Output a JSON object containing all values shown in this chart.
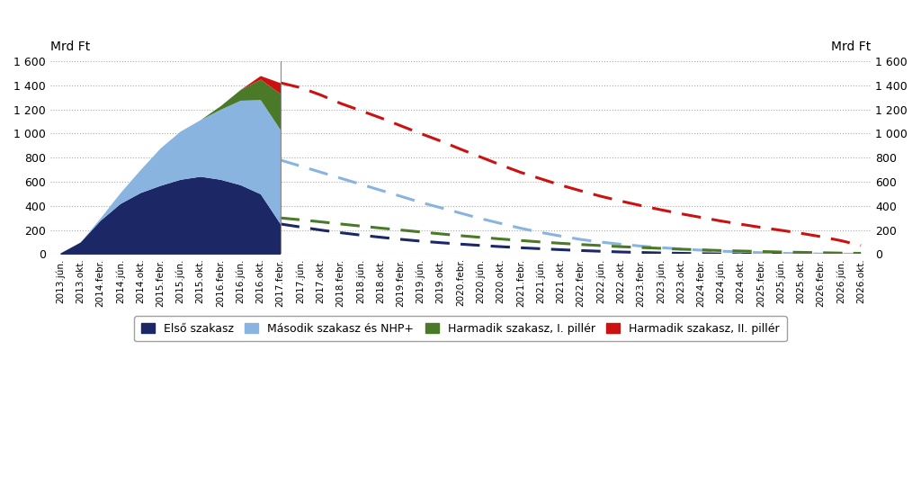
{
  "ylabel_left": "Mrd Ft",
  "ylabel_right": "Mrd Ft",
  "ylim": [
    0,
    1600
  ],
  "yticks": [
    0,
    200,
    400,
    600,
    800,
    1000,
    1200,
    1400,
    1600
  ],
  "colors": {
    "elso": "#1c2766",
    "masodik": "#8ab4e0",
    "harmadik1": "#4a7a28",
    "harmadik2": "#cc1111"
  },
  "legend_labels": [
    "Első szakasz",
    "Második szakasz és NHP+",
    "Harmadik szakasz, I. pillér",
    "Harmadik szakasz, II. pillér"
  ],
  "x_labels": [
    "2013.jún.",
    "2013.okt.",
    "2014.febr.",
    "2014.jún.",
    "2014.okt.",
    "2015.febr.",
    "2015.jún.",
    "2015.okt.",
    "2016.febr.",
    "2016.jún.",
    "2016.okt.",
    "2017.febr.",
    "2017.jún.",
    "2017.okt.",
    "2018.febr.",
    "2018.jún.",
    "2018.okt.",
    "2019.febr.",
    "2019.jún.",
    "2019.okt.",
    "2020.febr.",
    "2020.jún.",
    "2020.okt.",
    "2021.febr.",
    "2021.jún.",
    "2021.okt.",
    "2022.febr.",
    "2022.jún.",
    "2022.okt.",
    "2023.febr.",
    "2023.jún.",
    "2023.okt.",
    "2024.febr.",
    "2024.jún.",
    "2024.okt.",
    "2025.febr.",
    "2025.jún.",
    "2025.okt.",
    "2026.febr.",
    "2026.jún.",
    "2026.okt."
  ],
  "split_index": 11,
  "elso_vals": [
    10,
    100,
    280,
    420,
    510,
    570,
    620,
    645,
    620,
    575,
    500,
    250
  ],
  "masodik_vals": [
    0,
    0,
    20,
    90,
    190,
    310,
    400,
    470,
    580,
    700,
    780,
    780
  ],
  "harm1_vals": [
    0,
    0,
    0,
    0,
    0,
    0,
    0,
    0,
    30,
    90,
    170,
    300
  ],
  "harm2_vals": [
    0,
    0,
    0,
    0,
    0,
    0,
    0,
    0,
    0,
    0,
    30,
    90
  ],
  "dash_elso_x": [
    11,
    12,
    13,
    14,
    15,
    16,
    17,
    18,
    19,
    20,
    21,
    22,
    23,
    24,
    25,
    26,
    27,
    28,
    29,
    30,
    31,
    32,
    33,
    34,
    35,
    36,
    37,
    38,
    39,
    40
  ],
  "dash_elso_y": [
    250,
    225,
    200,
    178,
    158,
    140,
    123,
    108,
    95,
    83,
    72,
    62,
    53,
    45,
    37,
    30,
    24,
    18,
    14,
    10,
    7,
    4,
    2,
    1,
    0,
    0,
    0,
    0,
    0,
    0
  ],
  "dash_masodik_x": [
    11,
    12,
    13,
    14,
    15,
    16,
    17,
    18,
    19,
    20,
    21,
    22,
    23,
    24,
    25,
    26,
    27,
    28,
    29,
    30,
    31,
    32,
    33,
    34,
    35,
    36,
    37,
    38,
    39,
    40
  ],
  "dash_masodik_y": [
    780,
    730,
    680,
    630,
    580,
    530,
    480,
    430,
    385,
    340,
    295,
    255,
    215,
    180,
    150,
    122,
    100,
    82,
    67,
    54,
    43,
    33,
    25,
    18,
    12,
    7,
    4,
    1,
    0,
    0
  ],
  "dash_harm1_x": [
    11,
    12,
    13,
    14,
    15,
    16,
    17,
    18,
    19,
    20,
    21,
    22,
    23,
    24,
    25,
    26,
    27,
    28,
    29,
    30,
    31,
    32,
    33,
    34,
    35,
    36,
    37,
    38,
    39,
    40
  ],
  "dash_harm1_y": [
    300,
    285,
    268,
    250,
    233,
    216,
    200,
    184,
    168,
    153,
    139,
    126,
    113,
    101,
    90,
    80,
    71,
    62,
    55,
    48,
    41,
    36,
    30,
    26,
    22,
    18,
    15,
    12,
    9,
    7
  ],
  "dash_harm2_x": [
    11,
    12,
    13,
    14,
    15,
    16,
    17,
    18,
    19,
    20,
    21,
    22,
    23,
    24,
    25,
    26,
    27,
    28,
    29,
    30,
    31,
    32,
    33,
    34,
    35,
    36,
    37,
    38,
    39,
    40
  ],
  "dash_harm2_y": [
    1420,
    1380,
    1320,
    1250,
    1190,
    1130,
    1065,
    1000,
    938,
    870,
    805,
    740,
    678,
    625,
    572,
    525,
    480,
    440,
    403,
    368,
    335,
    305,
    275,
    248,
    222,
    198,
    173,
    145,
    112,
    72
  ]
}
